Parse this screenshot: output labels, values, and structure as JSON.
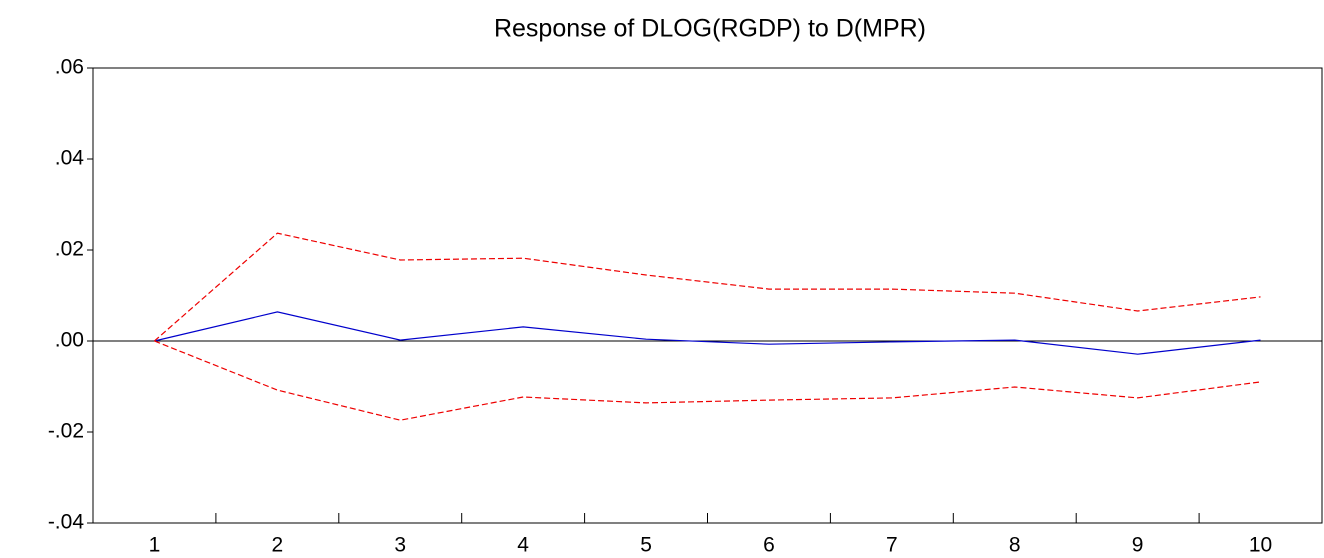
{
  "chart_data": {
    "type": "line",
    "title": "Response of DLOG(RGDP) to D(MPR)",
    "categories": [
      "1",
      "2",
      "3",
      "4",
      "5",
      "6",
      "7",
      "8",
      "9",
      "10"
    ],
    "series": [
      {
        "color": "#0000cc",
        "dashed": false,
        "values": [
          0,
          0.0064,
          0.0002,
          0.0031,
          0.0004,
          -0.0007,
          -0.0002,
          0.0002,
          -0.0029,
          0.0002
        ]
      },
      {
        "color": "#ee0000",
        "dashed": true,
        "values": [
          0,
          0.0237,
          0.0178,
          0.0182,
          0.0145,
          0.0114,
          0.0114,
          0.0105,
          0.0066,
          0.0097
        ]
      },
      {
        "color": "#ee0000",
        "dashed": true,
        "values": [
          0,
          -0.0108,
          -0.0174,
          -0.0123,
          -0.0136,
          -0.013,
          -0.0125,
          -0.0101,
          -0.0125,
          -0.009
        ]
      }
    ],
    "ylim": [
      -0.04,
      0.06
    ],
    "yticks": [
      {
        "value": -0.04,
        "label": "-.04"
      },
      {
        "value": -0.02,
        "label": "-.02"
      },
      {
        "value": 0,
        "label": ".00"
      },
      {
        "value": 0.02,
        "label": ".02"
      },
      {
        "value": 0.04,
        "label": ".04"
      },
      {
        "value": 0.06,
        "label": ".06"
      }
    ],
    "zero_line": true
  }
}
